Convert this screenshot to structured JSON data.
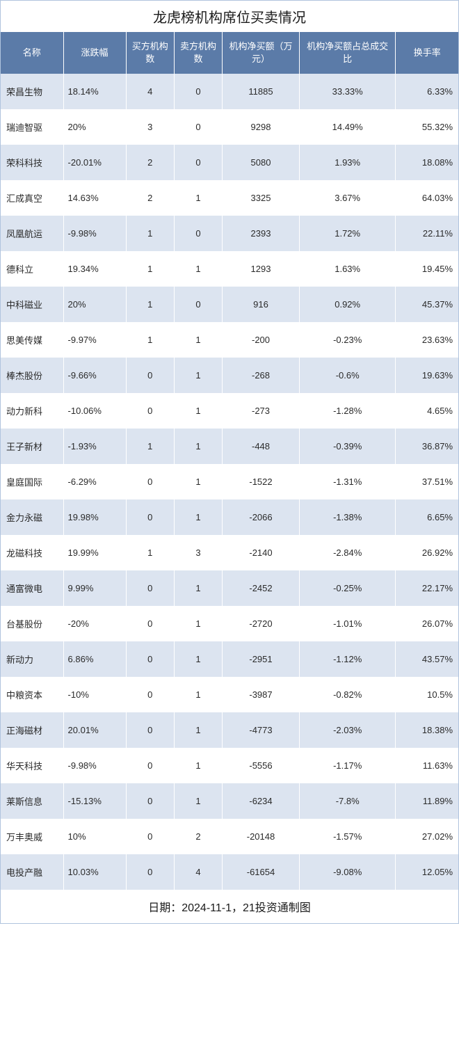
{
  "title": "龙虎榜机构席位买卖情况",
  "footer": "日期：2024-11-1，21投资通制图",
  "colors": {
    "header_bg": "#5b7ba8",
    "header_text": "#ffffff",
    "row_odd": "#dce4f0",
    "row_even": "#ffffff",
    "text": "#2a2a2a",
    "border": "#b0c4de"
  },
  "columns": [
    "名称",
    "涨跌幅",
    "买方机构数",
    "卖方机构数",
    "机构净买额（万元）",
    "机构净买额占总成交比",
    "换手率"
  ],
  "rows": [
    {
      "c0": "荣昌生物",
      "c1": "18.14%",
      "c2": "4",
      "c3": "0",
      "c4": "11885",
      "c5": "33.33%",
      "c6": "6.33%"
    },
    {
      "c0": "瑞迪智驱",
      "c1": "20%",
      "c2": "3",
      "c3": "0",
      "c4": "9298",
      "c5": "14.49%",
      "c6": "55.32%"
    },
    {
      "c0": "荣科科技",
      "c1": "-20.01%",
      "c2": "2",
      "c3": "0",
      "c4": "5080",
      "c5": "1.93%",
      "c6": "18.08%"
    },
    {
      "c0": "汇成真空",
      "c1": "14.63%",
      "c2": "2",
      "c3": "1",
      "c4": "3325",
      "c5": "3.67%",
      "c6": "64.03%"
    },
    {
      "c0": "凤凰航运",
      "c1": "-9.98%",
      "c2": "1",
      "c3": "0",
      "c4": "2393",
      "c5": "1.72%",
      "c6": "22.11%"
    },
    {
      "c0": "德科立",
      "c1": "19.34%",
      "c2": "1",
      "c3": "1",
      "c4": "1293",
      "c5": "1.63%",
      "c6": "19.45%"
    },
    {
      "c0": "中科磁业",
      "c1": "20%",
      "c2": "1",
      "c3": "0",
      "c4": "916",
      "c5": "0.92%",
      "c6": "45.37%"
    },
    {
      "c0": "思美传媒",
      "c1": "-9.97%",
      "c2": "1",
      "c3": "1",
      "c4": "-200",
      "c5": "-0.23%",
      "c6": "23.63%"
    },
    {
      "c0": "棒杰股份",
      "c1": "-9.66%",
      "c2": "0",
      "c3": "1",
      "c4": "-268",
      "c5": "-0.6%",
      "c6": "19.63%"
    },
    {
      "c0": "动力新科",
      "c1": "-10.06%",
      "c2": "0",
      "c3": "1",
      "c4": "-273",
      "c5": "-1.28%",
      "c6": "4.65%"
    },
    {
      "c0": "王子新材",
      "c1": "-1.93%",
      "c2": "1",
      "c3": "1",
      "c4": "-448",
      "c5": "-0.39%",
      "c6": "36.87%"
    },
    {
      "c0": "皇庭国际",
      "c1": "-6.29%",
      "c2": "0",
      "c3": "1",
      "c4": "-1522",
      "c5": "-1.31%",
      "c6": "37.51%"
    },
    {
      "c0": "金力永磁",
      "c1": "19.98%",
      "c2": "0",
      "c3": "1",
      "c4": "-2066",
      "c5": "-1.38%",
      "c6": "6.65%"
    },
    {
      "c0": "龙磁科技",
      "c1": "19.99%",
      "c2": "1",
      "c3": "3",
      "c4": "-2140",
      "c5": "-2.84%",
      "c6": "26.92%"
    },
    {
      "c0": "通富微电",
      "c1": "9.99%",
      "c2": "0",
      "c3": "1",
      "c4": "-2452",
      "c5": "-0.25%",
      "c6": "22.17%"
    },
    {
      "c0": "台基股份",
      "c1": "-20%",
      "c2": "0",
      "c3": "1",
      "c4": "-2720",
      "c5": "-1.01%",
      "c6": "26.07%"
    },
    {
      "c0": "新动力",
      "c1": "6.86%",
      "c2": "0",
      "c3": "1",
      "c4": "-2951",
      "c5": "-1.12%",
      "c6": "43.57%"
    },
    {
      "c0": "中粮资本",
      "c1": "-10%",
      "c2": "0",
      "c3": "1",
      "c4": "-3987",
      "c5": "-0.82%",
      "c6": "10.5%"
    },
    {
      "c0": "正海磁材",
      "c1": "20.01%",
      "c2": "0",
      "c3": "1",
      "c4": "-4773",
      "c5": "-2.03%",
      "c6": "18.38%"
    },
    {
      "c0": "华天科技",
      "c1": "-9.98%",
      "c2": "0",
      "c3": "1",
      "c4": "-5556",
      "c5": "-1.17%",
      "c6": "11.63%"
    },
    {
      "c0": "莱斯信息",
      "c1": "-15.13%",
      "c2": "0",
      "c3": "1",
      "c4": "-6234",
      "c5": "-7.8%",
      "c6": "11.89%"
    },
    {
      "c0": "万丰奥威",
      "c1": "10%",
      "c2": "0",
      "c3": "2",
      "c4": "-20148",
      "c5": "-1.57%",
      "c6": "27.02%"
    },
    {
      "c0": "电投产融",
      "c1": "10.03%",
      "c2": "0",
      "c3": "4",
      "c4": "-61654",
      "c5": "-9.08%",
      "c6": "12.05%"
    }
  ]
}
